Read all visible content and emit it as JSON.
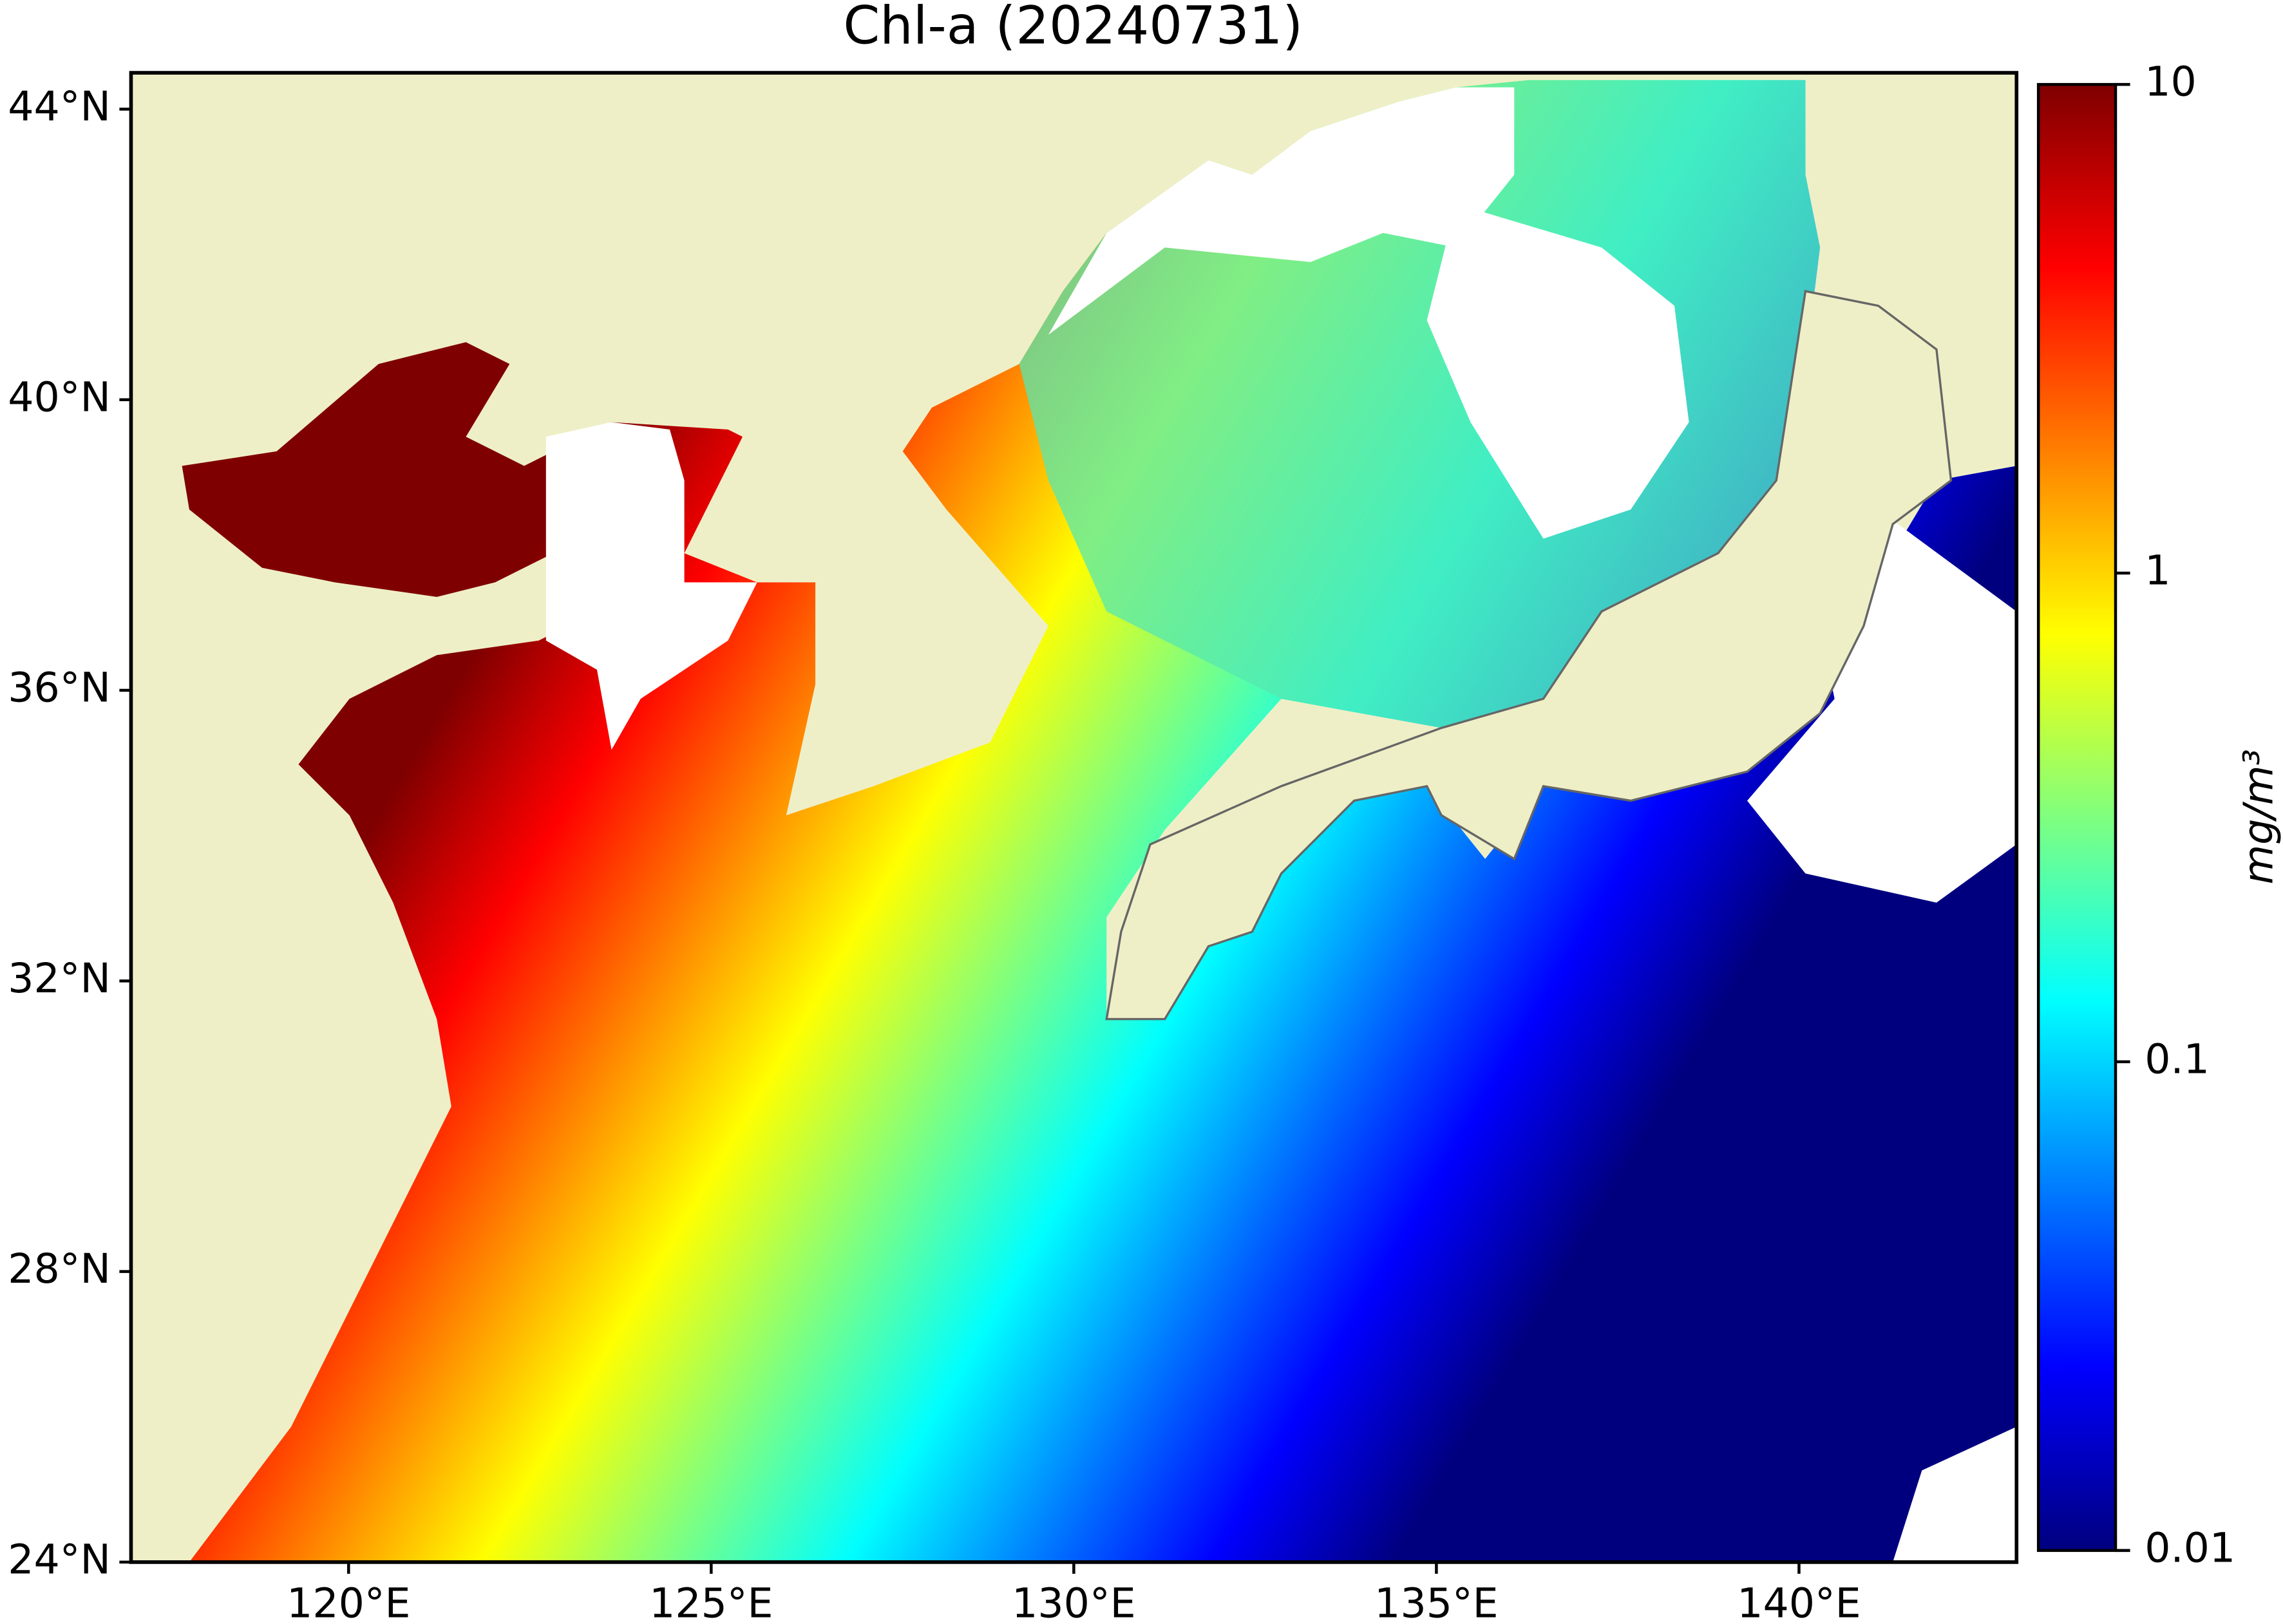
{
  "title": "Chl-a (20240731)",
  "map": {
    "xlim": [
      117,
      143
    ],
    "ylim": [
      24,
      44.5
    ],
    "xticks": [
      {
        "value": 120,
        "label": "120°E"
      },
      {
        "value": 125,
        "label": "125°E"
      },
      {
        "value": 130,
        "label": "130°E"
      },
      {
        "value": 135,
        "label": "135°E"
      },
      {
        "value": 140,
        "label": "140°E"
      }
    ],
    "yticks": [
      {
        "value": 24,
        "label": "24°N"
      },
      {
        "value": 28,
        "label": "28°N"
      },
      {
        "value": 32,
        "label": "32°N"
      },
      {
        "value": 36,
        "label": "36°N"
      },
      {
        "value": 40,
        "label": "40°N"
      },
      {
        "value": 44,
        "label": "44°N"
      }
    ]
  },
  "colorbar": {
    "label": "mg/m³",
    "scale": "log",
    "lim": [
      0.01,
      10
    ],
    "ticks": [
      0.01,
      0.1,
      1,
      10
    ],
    "colormap": [
      "#00007f",
      "#0000ff",
      "#007fff",
      "#00ffff",
      "#7fff7f",
      "#ffff00",
      "#ff7f00",
      "#ff0000",
      "#7f0000"
    ]
  }
}
